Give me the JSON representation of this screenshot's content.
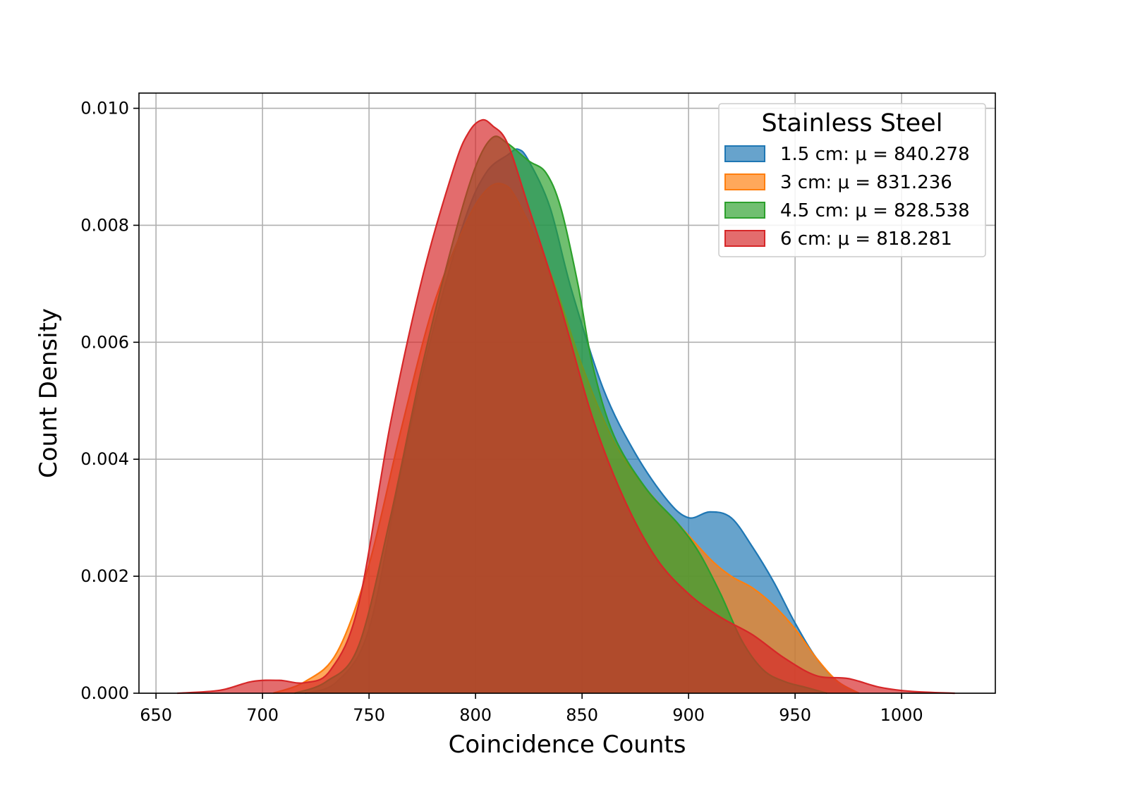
{
  "chart_data": {
    "type": "area",
    "xlabel": "Coincidence Counts",
    "ylabel": "Count Density",
    "xlim": [
      642,
      1044
    ],
    "ylim": [
      0,
      0.01026
    ],
    "xticks": [
      650,
      700,
      750,
      800,
      850,
      900,
      950,
      1000
    ],
    "yticks": [
      0.0,
      0.002,
      0.004,
      0.006,
      0.008,
      0.01
    ],
    "xtick_labels": [
      "650",
      "700",
      "750",
      "800",
      "850",
      "900",
      "950",
      "1000"
    ],
    "ytick_labels": [
      "0.000",
      "0.002",
      "0.004",
      "0.006",
      "0.008",
      "0.010"
    ],
    "grid": true,
    "legend": {
      "title": "Stainless Steel",
      "position": "top-right"
    },
    "series": [
      {
        "name": "1.5 cm: μ = 840.278",
        "color": "#1f77b4",
        "x": [
          720,
          735,
          750,
          765,
          780,
          795,
          805,
          815,
          820,
          825,
          835,
          845,
          860,
          875,
          890,
          900,
          910,
          920,
          930,
          940,
          950,
          960,
          970,
          980
        ],
        "y": [
          0.0,
          0.0002,
          0.0011,
          0.0038,
          0.0062,
          0.0081,
          0.0089,
          0.0092,
          0.0093,
          0.0091,
          0.0083,
          0.0069,
          0.0052,
          0.0041,
          0.0033,
          0.003,
          0.0031,
          0.003,
          0.0025,
          0.0019,
          0.0012,
          0.0006,
          0.0002,
          0.0
        ]
      },
      {
        "name": "3 cm: μ = 831.236",
        "color": "#ff7f0e",
        "x": [
          705,
          720,
          735,
          750,
          765,
          780,
          795,
          805,
          813,
          820,
          835,
          850,
          865,
          880,
          895,
          910,
          920,
          930,
          940,
          950,
          960,
          970,
          980
        ],
        "y": [
          0.0,
          0.0002,
          0.0007,
          0.0022,
          0.0045,
          0.0066,
          0.008,
          0.0086,
          0.0087,
          0.0084,
          0.0072,
          0.0056,
          0.0043,
          0.0035,
          0.0029,
          0.0023,
          0.002,
          0.0018,
          0.0015,
          0.0011,
          0.0006,
          0.0002,
          0.0
        ]
      },
      {
        "name": "4.5 cm: μ = 828.538",
        "color": "#2ca02c",
        "x": [
          715,
          730,
          745,
          760,
          775,
          790,
          800,
          808,
          815,
          825,
          833,
          840,
          848,
          855,
          865,
          880,
          895,
          905,
          915,
          925,
          935,
          945,
          955,
          965
        ],
        "y": [
          0.0,
          0.0002,
          0.0008,
          0.003,
          0.0056,
          0.0078,
          0.009,
          0.0095,
          0.0094,
          0.0091,
          0.0089,
          0.0083,
          0.007,
          0.0056,
          0.0044,
          0.0035,
          0.0029,
          0.0024,
          0.0017,
          0.0009,
          0.0004,
          0.0002,
          0.0001,
          0.0
        ]
      },
      {
        "name": "6 cm: μ = 818.281",
        "color": "#d62728",
        "x": [
          660,
          680,
          695,
          708,
          720,
          732,
          745,
          760,
          775,
          790,
          797,
          803,
          808,
          815,
          825,
          840,
          855,
          870,
          885,
          900,
          915,
          930,
          945,
          960,
          975,
          990,
          1005,
          1025
        ],
        "y": [
          0.0,
          5e-05,
          0.0002,
          0.00022,
          0.00018,
          0.0004,
          0.0015,
          0.0046,
          0.0071,
          0.009,
          0.0096,
          0.0098,
          0.0097,
          0.0094,
          0.0083,
          0.0066,
          0.0047,
          0.0033,
          0.0023,
          0.0017,
          0.0013,
          0.001,
          0.0006,
          0.0003,
          0.00025,
          0.0001,
          3e-05,
          0.0
        ]
      }
    ]
  }
}
